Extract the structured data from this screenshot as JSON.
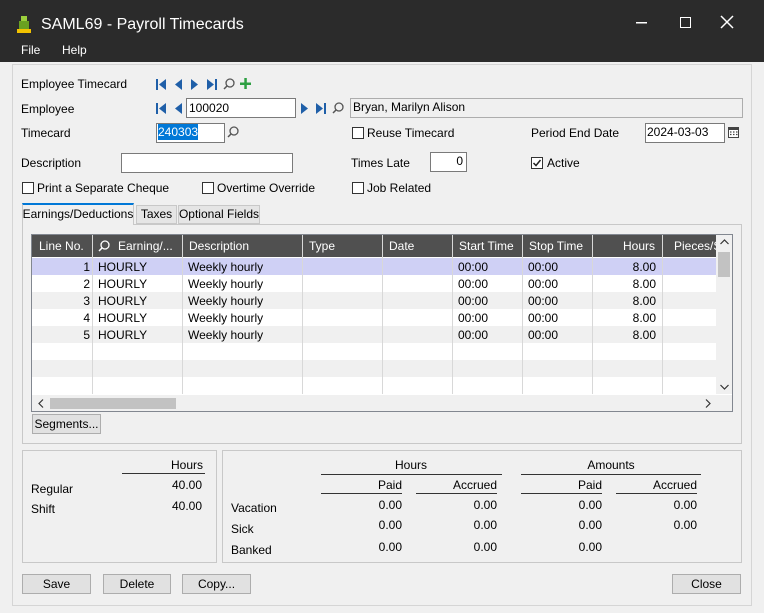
{
  "window": {
    "title": "SAML69 - Payroll Timecards"
  },
  "menu": [
    "File",
    "Help"
  ],
  "form": {
    "employee_timecard_label": "Employee Timecard",
    "employee_label": "Employee",
    "employee_id": "100020",
    "employee_name": "Bryan, Marilyn Alison",
    "timecard_label": "Timecard",
    "timecard": "240303",
    "reuse_timecard": "Reuse Timecard",
    "period_end_date_label": "Period End Date",
    "period_end_date": "2024-03-03",
    "description_label": "Description",
    "times_late_label": "Times Late",
    "times_late": "0",
    "active": "Active",
    "print_separate_cheque": "Print a Separate Cheque",
    "overtime_override": "Overtime Override",
    "job_related": "Job Related"
  },
  "tabs": [
    "Earnings/Deductions",
    "Taxes",
    "Optional Fields"
  ],
  "grid": {
    "columns": [
      "Line No.",
      "Earning/...",
      "Description",
      "Type",
      "Date",
      "Start Time",
      "Stop Time",
      "Hours",
      "Pieces/S"
    ],
    "rows": [
      {
        "line": "1",
        "code": "HOURLY",
        "description": "Weekly hourly",
        "start": "00:00",
        "stop": "00:00",
        "hours": "8.00"
      },
      {
        "line": "2",
        "code": "HOURLY",
        "description": "Weekly hourly",
        "start": "00:00",
        "stop": "00:00",
        "hours": "8.00"
      },
      {
        "line": "3",
        "code": "HOURLY",
        "description": "Weekly hourly",
        "start": "00:00",
        "stop": "00:00",
        "hours": "8.00"
      },
      {
        "line": "4",
        "code": "HOURLY",
        "description": "Weekly hourly",
        "start": "00:00",
        "stop": "00:00",
        "hours": "8.00"
      },
      {
        "line": "5",
        "code": "HOURLY",
        "description": "Weekly hourly",
        "start": "00:00",
        "stop": "00:00",
        "hours": "8.00"
      }
    ]
  },
  "segments_button": "Segments...",
  "summary": {
    "hours_header": "Hours",
    "rows": [
      {
        "label": "Regular",
        "hours": "40.00"
      },
      {
        "label": "Shift",
        "hours": "40.00"
      }
    ]
  },
  "accruals": {
    "hours_header": "Hours",
    "amounts_header": "Amounts",
    "sub_headers": [
      "Paid",
      "Accrued",
      "Paid",
      "Accrued"
    ],
    "rows": [
      {
        "label": "Vacation",
        "hours_paid": "0.00",
        "hours_accrued": "0.00",
        "amount_paid": "0.00",
        "amount_accrued": "0.00"
      },
      {
        "label": "Sick",
        "hours_paid": "0.00",
        "hours_accrued": "0.00",
        "amount_paid": "0.00",
        "amount_accrued": "0.00"
      },
      {
        "label": "Banked",
        "hours_paid": "0.00",
        "hours_accrued": "0.00",
        "amount_paid": "0.00"
      }
    ]
  },
  "buttons": [
    "Save",
    "Delete",
    "Copy...",
    "Close"
  ]
}
